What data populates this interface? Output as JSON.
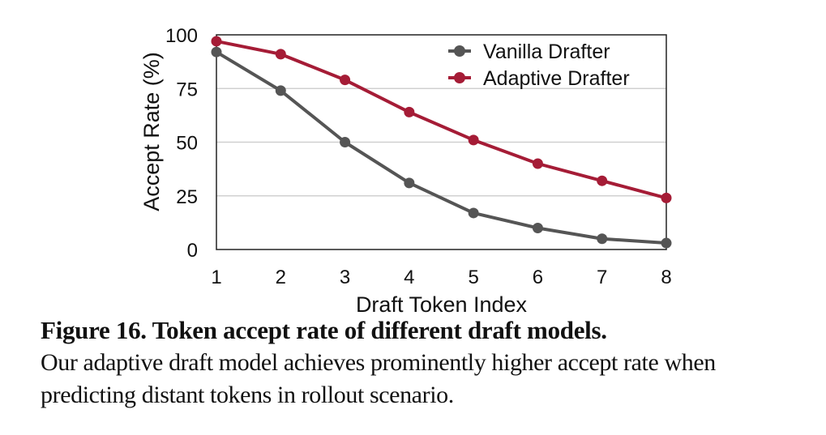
{
  "chart_data": {
    "type": "line",
    "title": "",
    "xlabel": "Draft Token Index",
    "ylabel": "Accept Rate (%)",
    "x": [
      1,
      2,
      3,
      4,
      5,
      6,
      7,
      8
    ],
    "xticks": [
      "1",
      "2",
      "3",
      "4",
      "5",
      "6",
      "7",
      "8"
    ],
    "yticks": [
      "0",
      "25",
      "50",
      "75",
      "100"
    ],
    "ylim": [
      0,
      100
    ],
    "xlim": [
      1,
      8
    ],
    "grid": "horizontal",
    "legend_position": "top-right",
    "series": [
      {
        "name": "Vanilla Drafter",
        "color": "#555555",
        "values": [
          92,
          74,
          50,
          31,
          17,
          10,
          5,
          3
        ]
      },
      {
        "name": "Adaptive Drafter",
        "color": "#a51c36",
        "values": [
          97,
          91,
          79,
          64,
          51,
          40,
          32,
          24
        ]
      }
    ]
  },
  "caption": {
    "title": "Figure 16. Token accept rate of different draft models.",
    "body": "Our adaptive draft model achieves prominently higher accept rate when predicting distant tokens in rollout scenario."
  }
}
